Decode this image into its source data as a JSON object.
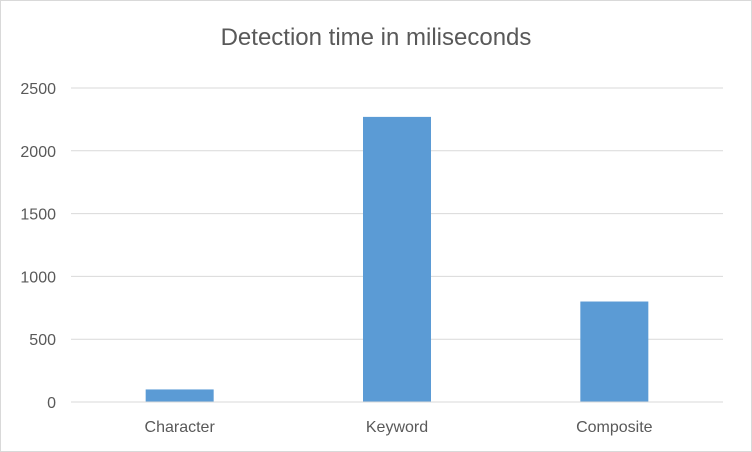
{
  "chart_data": {
    "type": "bar",
    "title": "Detection time in miliseconds",
    "categories": [
      "Character",
      "Keyword",
      "Composite"
    ],
    "values": [
      100,
      2270,
      800
    ],
    "ylim": [
      0,
      2500
    ],
    "yticks": [
      0,
      500,
      1000,
      1500,
      2000,
      2500
    ],
    "grid": true,
    "legend": "none",
    "bar_color": "#5b9bd5",
    "gridline_color": "#d9d9d9"
  }
}
